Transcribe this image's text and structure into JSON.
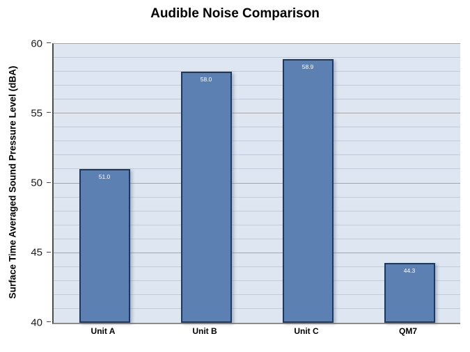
{
  "chart_data": {
    "type": "bar",
    "title": "Audible Noise Comparison",
    "xlabel": "",
    "ylabel": "Surface Time Averaged Sound Pressure Level (dBA)",
    "categories": [
      "Unit A",
      "Unit B",
      "Unit C",
      "QM7"
    ],
    "values": [
      51.0,
      58.0,
      58.9,
      44.3
    ],
    "value_labels": [
      "51.0",
      "58.0",
      "58.9",
      "44.3"
    ],
    "ylim": [
      40,
      60
    ],
    "y_major_step": 5,
    "y_minor_step": 1,
    "y_tick_labels": [
      "40",
      "45",
      "50",
      "55",
      "60"
    ],
    "grid": "on",
    "legend": "none",
    "colors": {
      "plot_bg": "#dde6f1",
      "minor_grid": "#c1cbda",
      "major_grid": "#a6a6a6",
      "bar_fill": "#5c80b1",
      "bar_border": "#20375c",
      "axis_left": "#4d4d4d",
      "axis_bottom": "#8c8c8c",
      "value_label": "#ffffff",
      "text": "#000000"
    }
  }
}
